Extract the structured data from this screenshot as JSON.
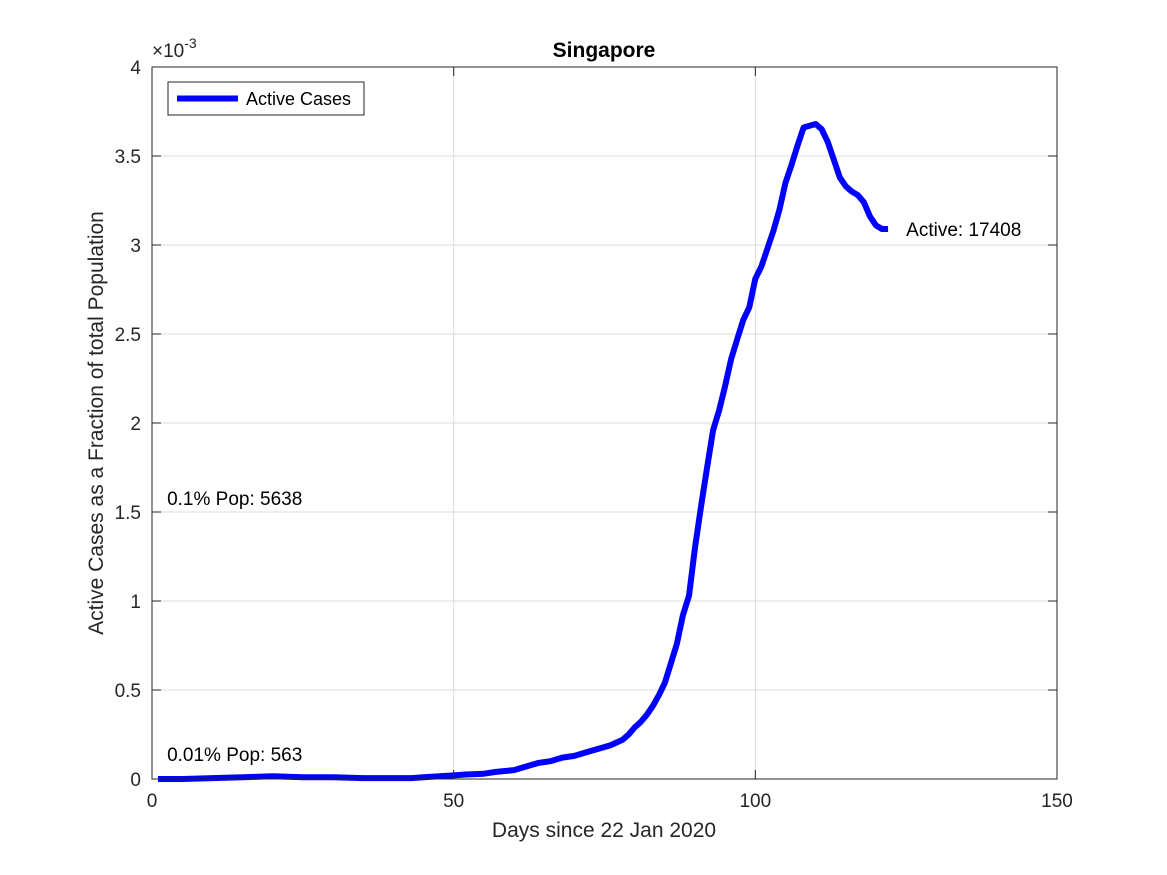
{
  "chart_data": {
    "type": "line",
    "title": "Singapore",
    "xlabel": "Days since 22 Jan 2020",
    "ylabel": "Active Cases as a Fraction of total Population",
    "y_exponent_label": "×10",
    "y_exponent_power": "-3",
    "xlim": [
      0,
      150
    ],
    "ylim": [
      0,
      4
    ],
    "xticks": [
      0,
      50,
      100,
      150
    ],
    "yticks": [
      0,
      0.5,
      1,
      1.5,
      2,
      2.5,
      3,
      3.5,
      4
    ],
    "xtick_labels": [
      "0",
      "50",
      "100",
      "150"
    ],
    "ytick_labels": [
      "0",
      "0.5",
      "1",
      "1.5",
      "2",
      "2.5",
      "3",
      "3.5",
      "4"
    ],
    "grid": true,
    "legend_position": "top-left",
    "series": [
      {
        "name": "Active Cases",
        "color": "#0000ff",
        "x": [
          1,
          5,
          10,
          15,
          20,
          25,
          30,
          35,
          40,
          43,
          45,
          50,
          52,
          55,
          57,
          60,
          62,
          64,
          66,
          68,
          70,
          72,
          74,
          76,
          78,
          79,
          80,
          81,
          82,
          83,
          84,
          85,
          86,
          87,
          88,
          89,
          90,
          91,
          92,
          93,
          94,
          95,
          96,
          97,
          98,
          99,
          100,
          101,
          102,
          103,
          104,
          105,
          106,
          107,
          108,
          109,
          110,
          111,
          112,
          113,
          114,
          115,
          116,
          117,
          118,
          119,
          120,
          121,
          122
        ],
        "values": [
          0.0,
          0.0,
          0.005,
          0.01,
          0.015,
          0.01,
          0.01,
          0.005,
          0.005,
          0.005,
          0.01,
          0.02,
          0.025,
          0.03,
          0.04,
          0.05,
          0.07,
          0.09,
          0.1,
          0.12,
          0.13,
          0.15,
          0.17,
          0.19,
          0.22,
          0.25,
          0.29,
          0.32,
          0.36,
          0.41,
          0.47,
          0.54,
          0.65,
          0.76,
          0.92,
          1.03,
          1.3,
          1.53,
          1.75,
          1.96,
          2.07,
          2.21,
          2.36,
          2.47,
          2.58,
          2.65,
          2.81,
          2.88,
          2.98,
          3.08,
          3.2,
          3.35,
          3.45,
          3.56,
          3.66,
          3.67,
          3.68,
          3.65,
          3.58,
          3.48,
          3.38,
          3.33,
          3.3,
          3.28,
          3.24,
          3.16,
          3.11,
          3.09,
          3.09
        ]
      }
    ],
    "annotations": [
      {
        "text": "Active: 17408",
        "x": 125,
        "y": 3.09
      },
      {
        "text": "0.1% Pop: 5638",
        "x": 2.5,
        "y": 1.58
      },
      {
        "text": "0.01% Pop: 563",
        "x": 2.5,
        "y": 0.14
      }
    ]
  }
}
